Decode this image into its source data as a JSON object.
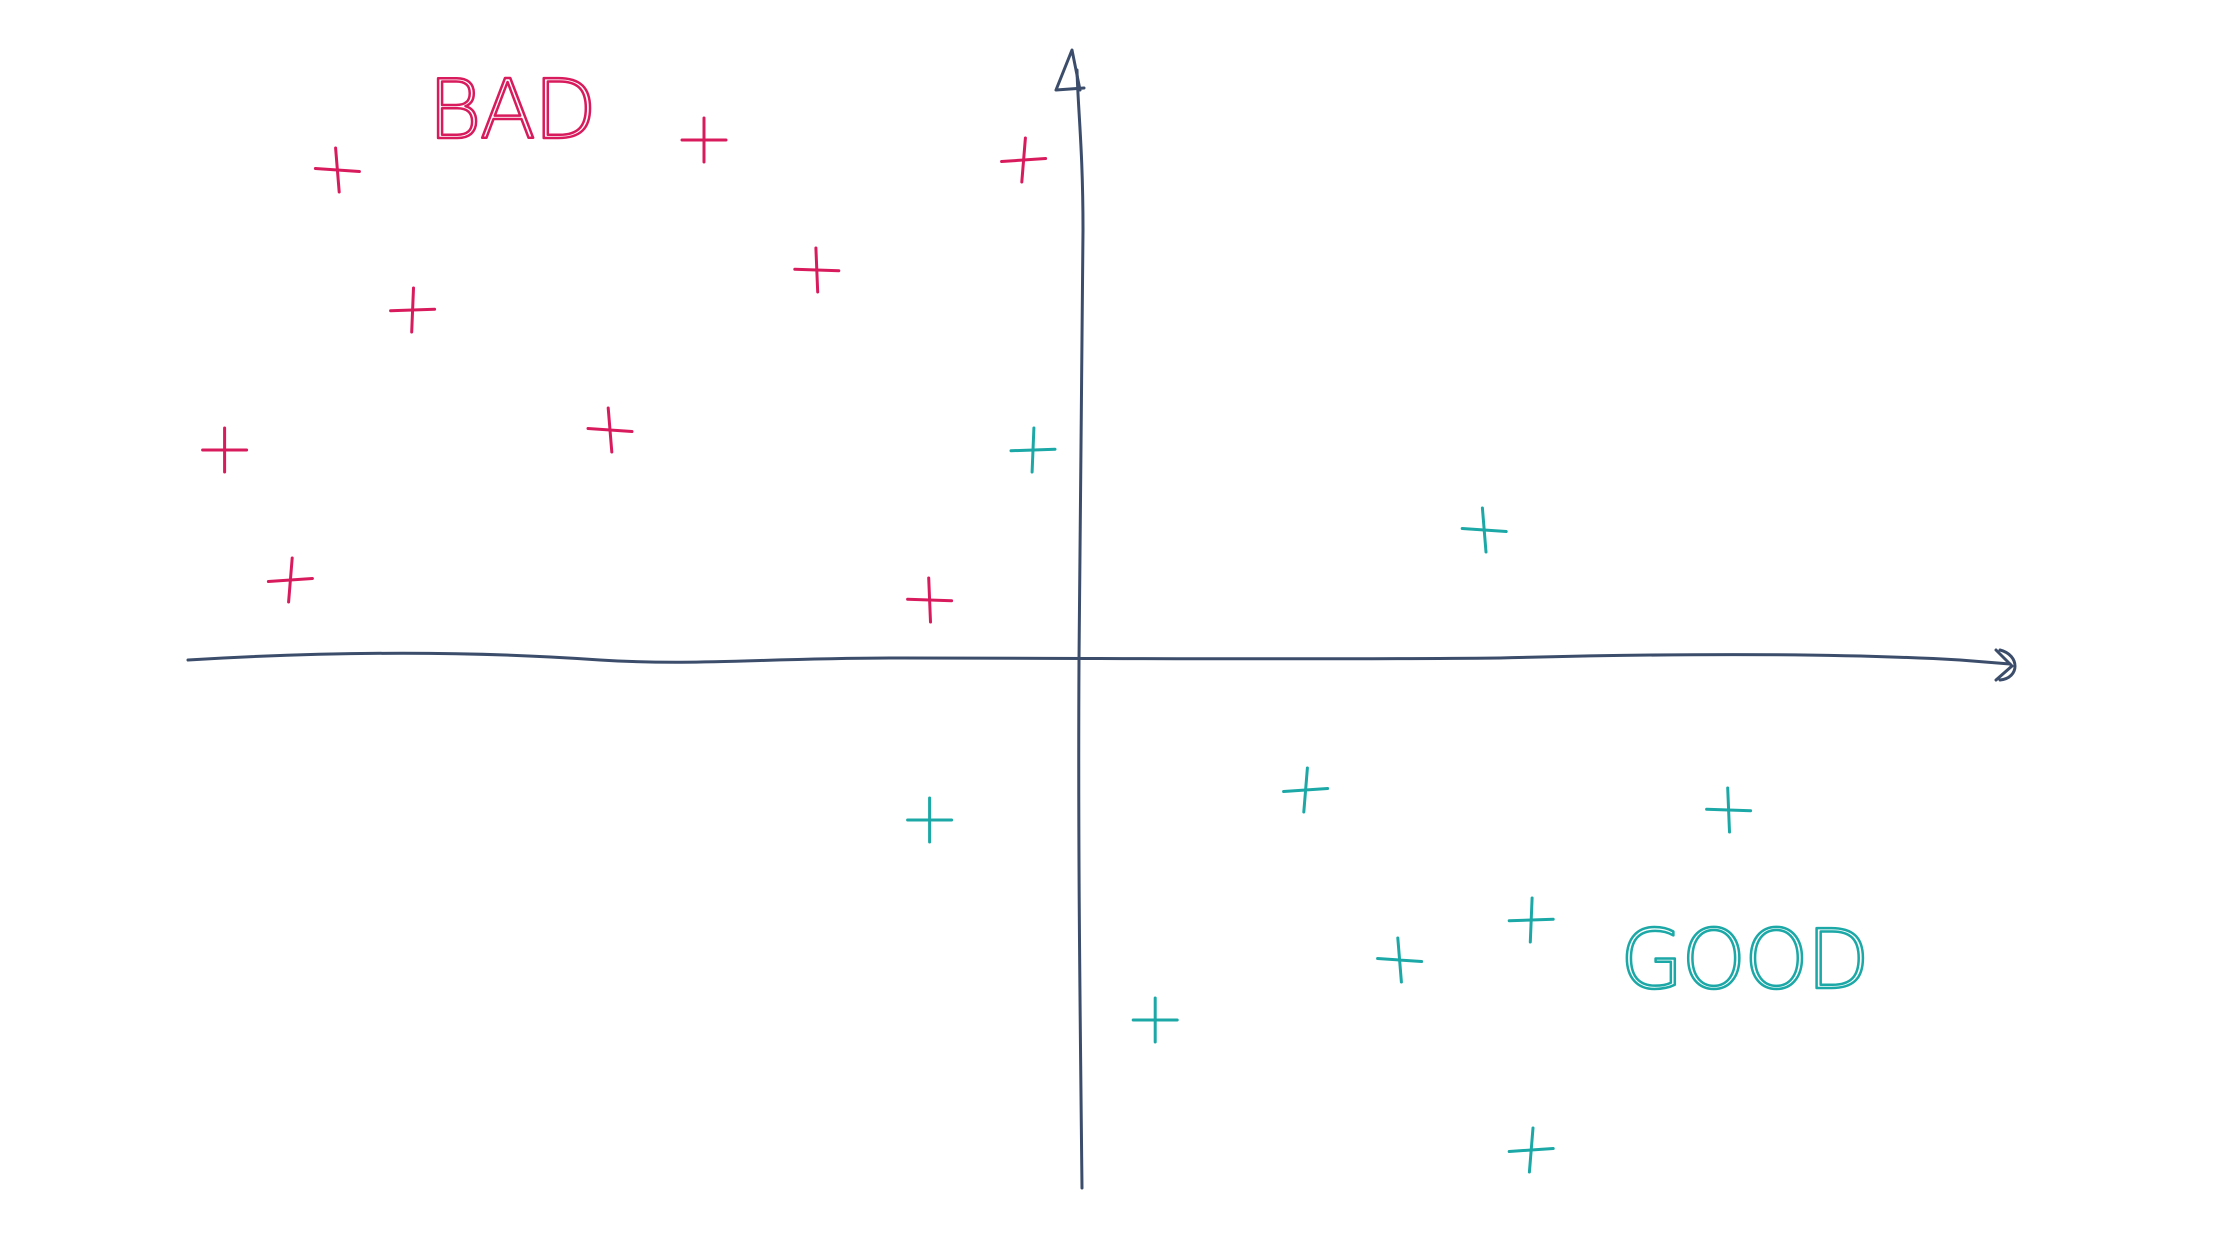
{
  "chart_data": {
    "type": "scatter",
    "title": "",
    "xlabel": "",
    "ylabel": "",
    "xlim": [
      -10,
      10
    ],
    "ylim": [
      -6,
      7
    ],
    "grid": false,
    "annotations": [
      {
        "text": "BAD",
        "quadrant": "top-left",
        "color": "#d81b5c"
      },
      {
        "text": "GOOD",
        "quadrant": "bottom-right",
        "color": "#1ba8a6"
      }
    ],
    "series": [
      {
        "color": "#d81b5c",
        "points": [
          [
            -7.9,
            4.9
          ],
          [
            -4.0,
            5.2
          ],
          [
            -0.6,
            5.0
          ],
          [
            -2.8,
            3.9
          ],
          [
            -7.1,
            3.5
          ],
          [
            -5.0,
            2.3
          ],
          [
            -9.1,
            2.1
          ],
          [
            -8.4,
            0.8
          ],
          [
            -1.6,
            0.6
          ]
        ]
      },
      {
        "color": "#1ba8a6",
        "points": [
          [
            -0.5,
            2.1
          ],
          [
            4.3,
            1.3
          ],
          [
            -1.6,
            -1.6
          ],
          [
            2.4,
            -1.3
          ],
          [
            6.9,
            -1.5
          ],
          [
            4.8,
            -2.6
          ],
          [
            3.4,
            -3.0
          ],
          [
            0.8,
            -3.6
          ],
          [
            4.8,
            -4.9
          ]
        ]
      }
    ]
  }
}
